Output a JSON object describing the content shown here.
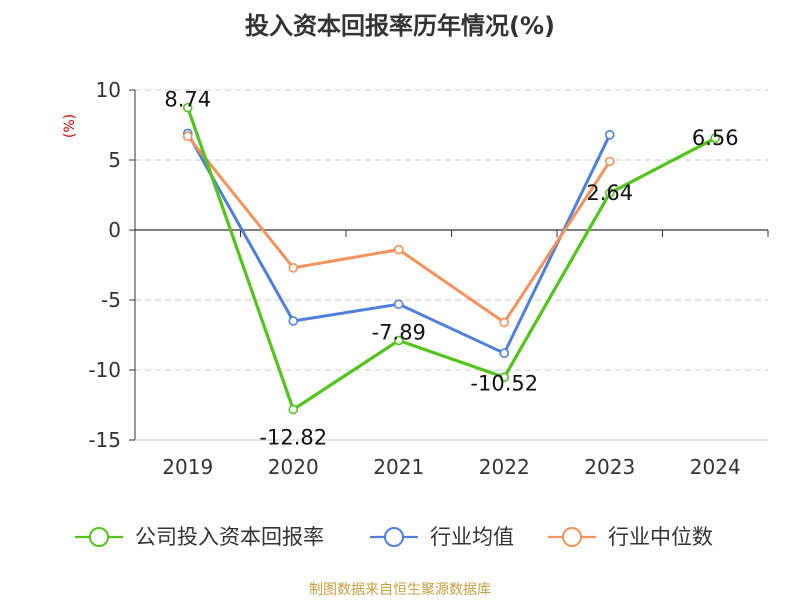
{
  "title": "投入资本回报率历年情况(%)",
  "source": "制图数据来自恒生聚源数据库",
  "chart_data": {
    "type": "line",
    "categories": [
      "2019",
      "2020",
      "2021",
      "2022",
      "2023",
      "2024"
    ],
    "ylabel": "(%)",
    "ylim": [
      -15,
      10
    ],
    "yticks": [
      10,
      5,
      0,
      -5,
      -10,
      -15
    ],
    "grid": true,
    "legend_position": "bottom",
    "series": [
      {
        "name": "公司投入资本回报率",
        "color": "#52c41a",
        "values": [
          8.74,
          -12.82,
          -7.89,
          -10.52,
          2.64,
          6.56
        ],
        "labels": [
          "8.74",
          "-12.82",
          "-7.89",
          "-10.52",
          "2.64",
          "6.56"
        ]
      },
      {
        "name": "行业均值",
        "color": "#4e7fdc",
        "values": [
          6.9,
          -6.5,
          -5.3,
          -8.8,
          6.8,
          null
        ]
      },
      {
        "name": "行业中位数",
        "color": "#f5915a",
        "values": [
          6.7,
          -2.7,
          -1.4,
          -6.6,
          4.9,
          null
        ]
      }
    ]
  }
}
